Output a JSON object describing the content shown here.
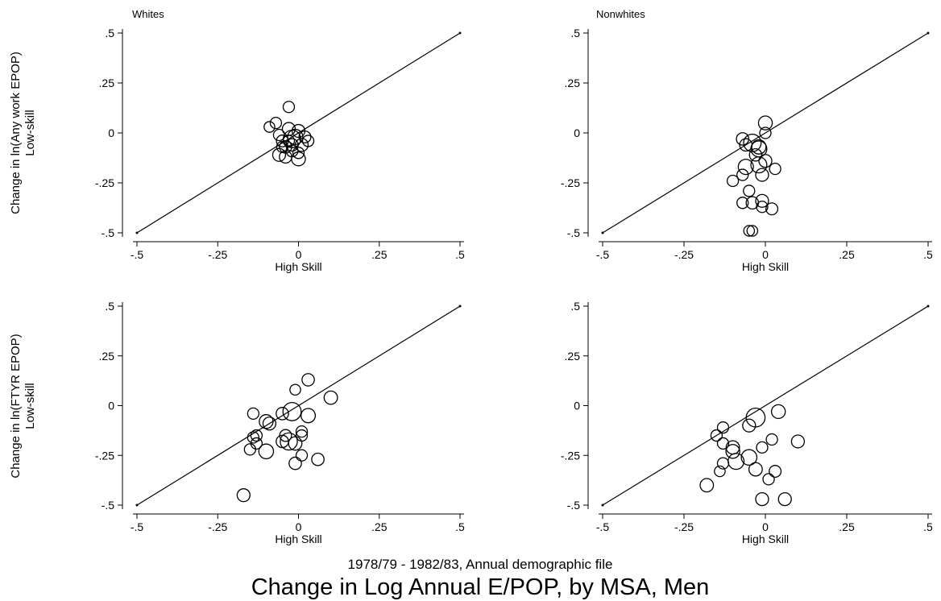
{
  "figure": {
    "subtitle": "1978/79 - 1982/83, Annual demographic file",
    "title": "Change in Log Annual E/POP, by MSA, Men"
  },
  "row_labels": [
    [
      "Change in ln(Any work EPOP)",
      "Low-skill"
    ],
    [
      "Change in ln(FTYR EPOP)",
      "Low-skill"
    ]
  ],
  "chart_data": [
    {
      "type": "scatter",
      "title": "Whites",
      "xlabel": "High Skill",
      "ylabel": "Change in ln(Any work EPOP) Low-skill",
      "xlim": [
        -0.5,
        0.5
      ],
      "ylim": [
        -0.5,
        0.5
      ],
      "xticks": [
        -0.5,
        -0.25,
        0,
        0.25,
        0.5
      ],
      "xtick_labels": [
        "-.5",
        "-.25",
        "0",
        ".25",
        ".5"
      ],
      "yticks": [
        -0.5,
        -0.25,
        0,
        0.25,
        0.5
      ],
      "ytick_labels": [
        "-.5",
        "-.25",
        "0",
        ".25",
        ".5"
      ],
      "reference_line": [
        [
          -0.5,
          -0.5
        ],
        [
          0.5,
          0.5
        ]
      ],
      "points": [
        {
          "x": -0.03,
          "y": 0.13,
          "size": 1.0
        },
        {
          "x": -0.09,
          "y": 0.03,
          "size": 0.9
        },
        {
          "x": -0.07,
          "y": 0.05,
          "size": 1.0
        },
        {
          "x": -0.06,
          "y": -0.01,
          "size": 1.0
        },
        {
          "x": -0.05,
          "y": -0.04,
          "size": 1.1
        },
        {
          "x": -0.04,
          "y": -0.07,
          "size": 1.2
        },
        {
          "x": -0.06,
          "y": -0.11,
          "size": 1.3
        },
        {
          "x": -0.04,
          "y": -0.12,
          "size": 1.2
        },
        {
          "x": -0.02,
          "y": -0.03,
          "size": 2.4
        },
        {
          "x": -0.03,
          "y": 0.02,
          "size": 1.3
        },
        {
          "x": -0.01,
          "y": -0.02,
          "size": 1.8
        },
        {
          "x": 0.0,
          "y": 0.01,
          "size": 1.3
        },
        {
          "x": 0.01,
          "y": -0.06,
          "size": 1.3
        },
        {
          "x": -0.02,
          "y": -0.09,
          "size": 1.1
        },
        {
          "x": 0.0,
          "y": -0.1,
          "size": 1.0
        },
        {
          "x": 0.0,
          "y": -0.13,
          "size": 1.5
        },
        {
          "x": 0.02,
          "y": -0.02,
          "size": 1.1
        },
        {
          "x": 0.03,
          "y": -0.04,
          "size": 1.0
        },
        {
          "x": -0.05,
          "y": -0.07,
          "size": 1.0
        },
        {
          "x": -0.02,
          "y": -0.06,
          "size": 1.2
        },
        {
          "x": -0.03,
          "y": -0.04,
          "size": 1.0
        }
      ]
    },
    {
      "type": "scatter",
      "title": "Nonwhites",
      "xlabel": "High Skill",
      "ylabel": "",
      "xlim": [
        -0.5,
        0.5
      ],
      "ylim": [
        -0.5,
        0.5
      ],
      "xticks": [
        -0.5,
        -0.25,
        0,
        0.25,
        0.5
      ],
      "xtick_labels": [
        "-.5",
        "-.25",
        "0",
        ".25",
        ".5"
      ],
      "yticks": [
        -0.5,
        -0.25,
        0,
        0.25,
        0.5
      ],
      "ytick_labels": [
        "-.5",
        "-.25",
        "0",
        ".25",
        ".5"
      ],
      "reference_line": [
        [
          -0.5,
          -0.5
        ],
        [
          0.5,
          0.5
        ]
      ],
      "points": [
        {
          "x": 0.0,
          "y": 0.05,
          "size": 1.5
        },
        {
          "x": -0.07,
          "y": -0.03,
          "size": 1.2
        },
        {
          "x": -0.06,
          "y": -0.06,
          "size": 1.2
        },
        {
          "x": -0.04,
          "y": -0.05,
          "size": 2.4
        },
        {
          "x": -0.02,
          "y": -0.07,
          "size": 1.6
        },
        {
          "x": -0.02,
          "y": -0.08,
          "size": 2.0
        },
        {
          "x": 0.0,
          "y": 0.0,
          "size": 1.0
        },
        {
          "x": -0.03,
          "y": -0.11,
          "size": 1.2
        },
        {
          "x": -0.06,
          "y": -0.17,
          "size": 1.8
        },
        {
          "x": -0.02,
          "y": -0.16,
          "size": 2.0
        },
        {
          "x": 0.0,
          "y": -0.14,
          "size": 1.3
        },
        {
          "x": -0.01,
          "y": -0.21,
          "size": 1.3
        },
        {
          "x": 0.03,
          "y": -0.18,
          "size": 1.0
        },
        {
          "x": -0.07,
          "y": -0.21,
          "size": 1.0
        },
        {
          "x": -0.1,
          "y": -0.24,
          "size": 1.0
        },
        {
          "x": -0.05,
          "y": -0.29,
          "size": 1.0
        },
        {
          "x": -0.04,
          "y": -0.35,
          "size": 1.2
        },
        {
          "x": -0.01,
          "y": -0.34,
          "size": 1.3
        },
        {
          "x": -0.01,
          "y": -0.37,
          "size": 1.0
        },
        {
          "x": 0.02,
          "y": -0.38,
          "size": 1.1
        },
        {
          "x": -0.07,
          "y": -0.35,
          "size": 1.0
        },
        {
          "x": -0.05,
          "y": -0.49,
          "size": 0.9
        },
        {
          "x": -0.04,
          "y": -0.49,
          "size": 0.9
        }
      ]
    },
    {
      "type": "scatter",
      "title": "",
      "xlabel": "High Skill",
      "ylabel": "Change in ln(FTYR EPOP) Low-skill",
      "xlim": [
        -0.5,
        0.5
      ],
      "ylim": [
        -0.5,
        0.5
      ],
      "xticks": [
        -0.5,
        -0.25,
        0,
        0.25,
        0.5
      ],
      "xtick_labels": [
        "-.5",
        "-.25",
        "0",
        ".25",
        ".5"
      ],
      "yticks": [
        -0.5,
        -0.25,
        0,
        0.25,
        0.5
      ],
      "ytick_labels": [
        "-.5",
        "-.25",
        "0",
        ".25",
        ".5"
      ],
      "reference_line": [
        [
          -0.5,
          -0.5
        ],
        [
          0.5,
          0.5
        ]
      ],
      "points": [
        {
          "x": 0.03,
          "y": 0.13,
          "size": 1.2
        },
        {
          "x": 0.1,
          "y": 0.04,
          "size": 1.4
        },
        {
          "x": -0.01,
          "y": 0.08,
          "size": 0.9
        },
        {
          "x": -0.02,
          "y": -0.03,
          "size": 2.6
        },
        {
          "x": -0.05,
          "y": -0.04,
          "size": 1.2
        },
        {
          "x": 0.03,
          "y": -0.05,
          "size": 1.6
        },
        {
          "x": -0.14,
          "y": -0.04,
          "size": 1.0
        },
        {
          "x": -0.1,
          "y": -0.08,
          "size": 1.5
        },
        {
          "x": -0.09,
          "y": -0.09,
          "size": 1.3
        },
        {
          "x": -0.13,
          "y": -0.15,
          "size": 1.0
        },
        {
          "x": -0.14,
          "y": -0.16,
          "size": 1.0
        },
        {
          "x": -0.13,
          "y": -0.19,
          "size": 1.0
        },
        {
          "x": -0.04,
          "y": -0.15,
          "size": 1.1
        },
        {
          "x": 0.01,
          "y": -0.15,
          "size": 1.0
        },
        {
          "x": 0.01,
          "y": -0.13,
          "size": 1.0
        },
        {
          "x": -0.03,
          "y": -0.18,
          "size": 2.3
        },
        {
          "x": -0.01,
          "y": -0.19,
          "size": 1.4
        },
        {
          "x": -0.05,
          "y": -0.18,
          "size": 1.2
        },
        {
          "x": -0.15,
          "y": -0.22,
          "size": 1.0
        },
        {
          "x": -0.1,
          "y": -0.23,
          "size": 1.7
        },
        {
          "x": 0.01,
          "y": -0.25,
          "size": 1.0
        },
        {
          "x": -0.01,
          "y": -0.29,
          "size": 1.2
        },
        {
          "x": 0.06,
          "y": -0.27,
          "size": 1.2
        },
        {
          "x": -0.17,
          "y": -0.45,
          "size": 1.3
        }
      ]
    },
    {
      "type": "scatter",
      "title": "",
      "xlabel": "High Skill",
      "ylabel": "",
      "xlim": [
        -0.5,
        0.5
      ],
      "ylim": [
        -0.5,
        0.5
      ],
      "xticks": [
        -0.5,
        -0.25,
        0,
        0.25,
        0.5
      ],
      "xtick_labels": [
        "-.5",
        "-.25",
        "0",
        ".25",
        ".5"
      ],
      "yticks": [
        -0.5,
        -0.25,
        0,
        0.25,
        0.5
      ],
      "ytick_labels": [
        "-.5",
        "-.25",
        "0",
        ".25",
        ".5"
      ],
      "reference_line": [
        [
          -0.5,
          -0.5
        ],
        [
          0.5,
          0.5
        ]
      ],
      "points": [
        {
          "x": -0.03,
          "y": -0.06,
          "size": 2.8
        },
        {
          "x": 0.04,
          "y": -0.03,
          "size": 1.5
        },
        {
          "x": -0.05,
          "y": -0.1,
          "size": 1.3
        },
        {
          "x": -0.13,
          "y": -0.11,
          "size": 1.0
        },
        {
          "x": -0.15,
          "y": -0.15,
          "size": 1.0
        },
        {
          "x": -0.13,
          "y": -0.19,
          "size": 1.0
        },
        {
          "x": -0.1,
          "y": -0.21,
          "size": 1.4
        },
        {
          "x": -0.1,
          "y": -0.23,
          "size": 1.5
        },
        {
          "x": -0.05,
          "y": -0.26,
          "size": 1.9
        },
        {
          "x": -0.09,
          "y": -0.28,
          "size": 2.0
        },
        {
          "x": -0.13,
          "y": -0.29,
          "size": 1.0
        },
        {
          "x": -0.03,
          "y": -0.32,
          "size": 1.4
        },
        {
          "x": 0.02,
          "y": -0.17,
          "size": 1.0
        },
        {
          "x": 0.1,
          "y": -0.18,
          "size": 1.3
        },
        {
          "x": -0.01,
          "y": -0.21,
          "size": 1.0
        },
        {
          "x": 0.03,
          "y": -0.33,
          "size": 1.1
        },
        {
          "x": 0.01,
          "y": -0.37,
          "size": 1.0
        },
        {
          "x": -0.14,
          "y": -0.33,
          "size": 0.9
        },
        {
          "x": -0.18,
          "y": -0.4,
          "size": 1.4
        },
        {
          "x": -0.01,
          "y": -0.47,
          "size": 1.3
        },
        {
          "x": 0.06,
          "y": -0.47,
          "size": 1.3
        }
      ]
    }
  ]
}
